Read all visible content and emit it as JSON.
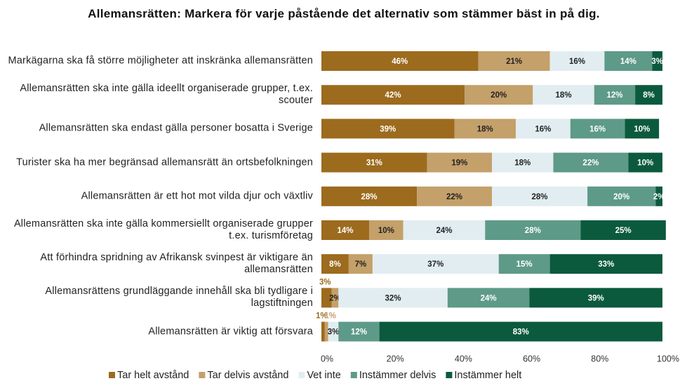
{
  "chart_data": {
    "type": "stacked-bar-horizontal",
    "title": "Allemansrätten: Markera för varje påstående det alternativ som stämmer bäst in på dig.",
    "categories": [
      "Markägarna ska få större möjligheter att inskränka allemansrätten",
      "Allemansrätten ska inte gälla ideellt organiserade grupper, t.ex. scouter",
      "Allemansrätten ska endast gälla personer bosatta i Sverige",
      "Turister ska ha mer begränsad allemansrätt än ortsbefolkningen",
      "Allemansrätten är ett hot mot vilda djur och växtliv",
      "Allemansrätten ska inte gälla kommersiellt organiserade grupper t.ex. turismföretag",
      "Att förhindra spridning av Afrikansk svinpest är viktigare än allemansrätten",
      "Allemansrättens grundläggande innehåll ska bli tydligare i lagstiftningen",
      "Allemansrätten är viktig att försvara"
    ],
    "series": [
      {
        "name": "Tar helt avstånd",
        "color": "#9c6b1e",
        "values": [
          46,
          42,
          39,
          31,
          28,
          14,
          8,
          3,
          1
        ],
        "value_labels": [
          "46%",
          "42%",
          "39%",
          "31%",
          "28%",
          "14%",
          "8%",
          "3%",
          "1%"
        ]
      },
      {
        "name": "Tar delvis avstånd",
        "color": "#c4a06a",
        "values": [
          21,
          20,
          18,
          19,
          22,
          10,
          7,
          2,
          1
        ],
        "value_labels": [
          "21%",
          "20%",
          "18%",
          "19%",
          "22%",
          "10%",
          "7%",
          "2%",
          "1%"
        ]
      },
      {
        "name": "Vet inte",
        "color": "#e2edf1",
        "values": [
          16,
          18,
          16,
          18,
          28,
          24,
          37,
          32,
          3
        ],
        "value_labels": [
          "16%",
          "18%",
          "16%",
          "18%",
          "28%",
          "24%",
          "37%",
          "32%",
          "3%"
        ]
      },
      {
        "name": "Instämmer delvis",
        "color": "#5e9a88",
        "values": [
          14,
          12,
          16,
          22,
          20,
          28,
          15,
          24,
          12
        ],
        "value_labels": [
          "14%",
          "12%",
          "16%",
          "22%",
          "20%",
          "28%",
          "15%",
          "24%",
          "12%"
        ]
      },
      {
        "name": "Instämmer helt",
        "color": "#0b5a3e",
        "values": [
          3,
          8,
          10,
          10,
          2,
          25,
          33,
          39,
          83
        ],
        "value_labels": [
          "3%",
          "8%",
          "10%",
          "10%",
          "2%",
          "25%",
          "33%",
          "39%",
          "83%"
        ]
      }
    ],
    "xlim": [
      0,
      100
    ],
    "xticks": [
      {
        "value": 0,
        "label": "0%"
      },
      {
        "value": 20,
        "label": "20%"
      },
      {
        "value": 40,
        "label": "40%"
      },
      {
        "value": 60,
        "label": "60%"
      },
      {
        "value": 80,
        "label": "80%"
      },
      {
        "value": 100,
        "label": "100%"
      }
    ],
    "legend": "bottom"
  }
}
